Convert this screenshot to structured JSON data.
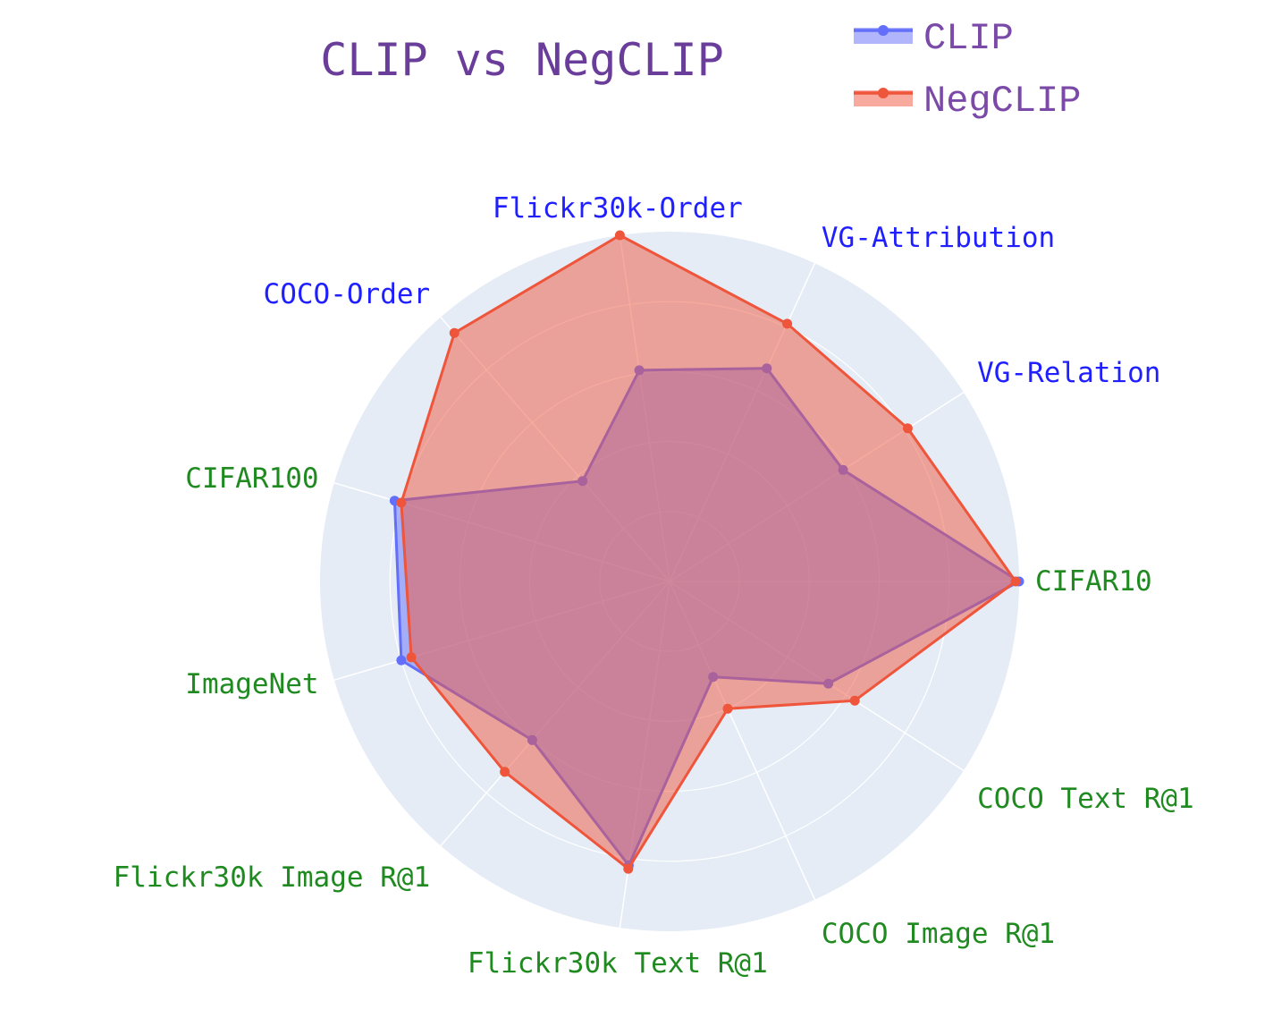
{
  "chart_data": {
    "type": "radar",
    "title": "CLIP vs NegCLIP",
    "title_color": "#6a3d9a",
    "legend_text_color": "#7b4aa8",
    "polar_background": "#e5ecf6",
    "grid_color": "#ffffff",
    "legend_position": "top-right",
    "grid": true,
    "categories": [
      "CIFAR10",
      "VG-Relation",
      "VG-Attribution",
      "Flickr30k-Order",
      "COCO-Order",
      "CIFAR100",
      "ImageNet",
      "Flickr30k Image R@1",
      "Flickr30k Text R@1",
      "COCO Image R@1",
      "COCO Text R@1"
    ],
    "category_colors": [
      "#1f8a1f",
      "#1f1fff",
      "#1f1fff",
      "#1f1fff",
      "#1f1fff",
      "#1f8a1f",
      "#1f8a1f",
      "#1f8a1f",
      "#1f8a1f",
      "#1f8a1f",
      "#1f8a1f"
    ],
    "radial_range": [
      0,
      1
    ],
    "series": [
      {
        "name": "CLIP",
        "color": "#636efa",
        "values": [
          1.0,
          0.59,
          0.67,
          0.61,
          0.38,
          0.82,
          0.8,
          0.6,
          0.82,
          0.3,
          0.54
        ]
      },
      {
        "name": "NegCLIP",
        "color": "#ef553b",
        "values": [
          0.99,
          0.81,
          0.81,
          1.0,
          0.94,
          0.8,
          0.77,
          0.72,
          0.83,
          0.4,
          0.63
        ]
      }
    ]
  }
}
